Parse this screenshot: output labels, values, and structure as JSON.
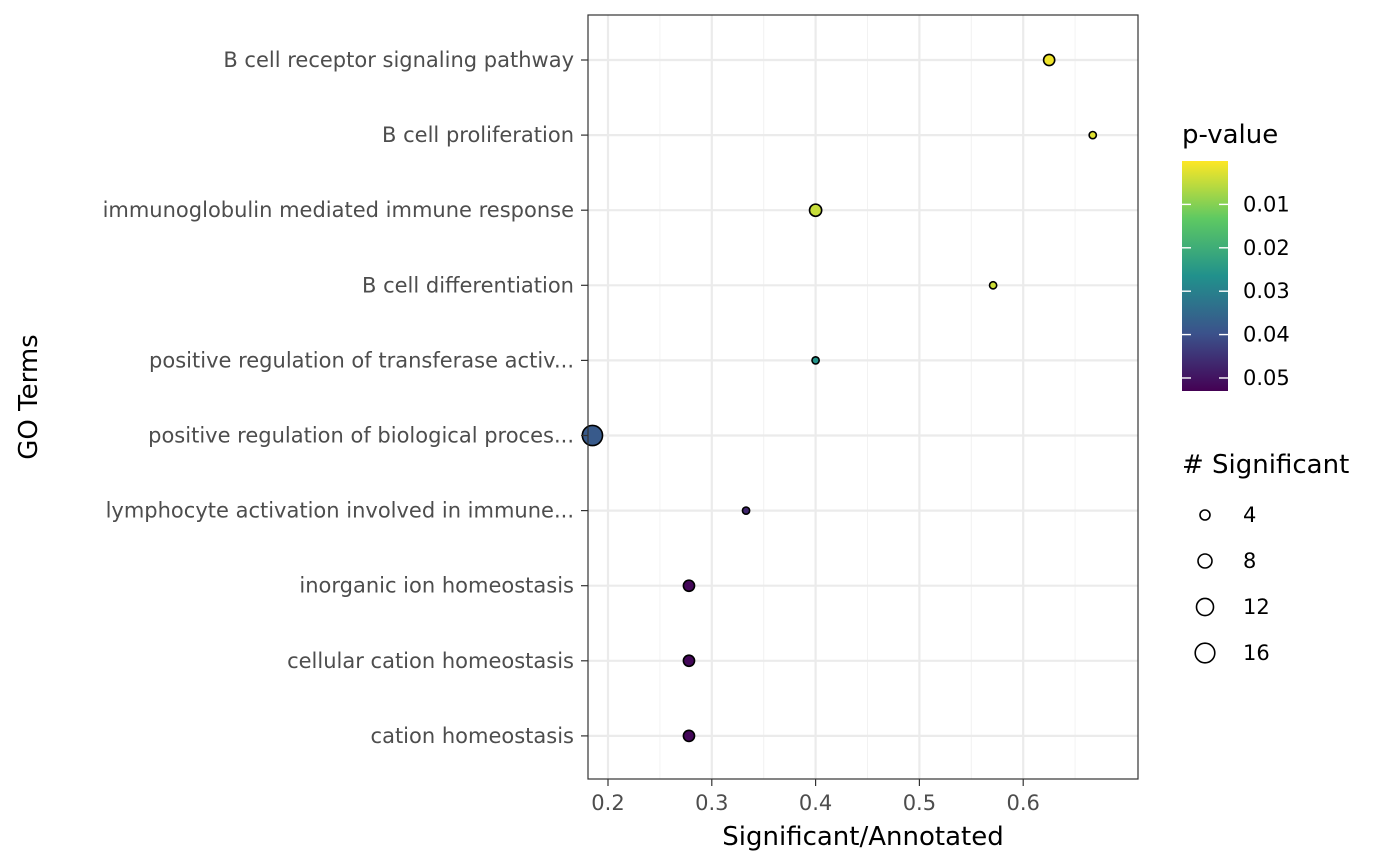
{
  "chart_data": {
    "type": "scatter",
    "xlabel": "Significant/Annotated",
    "ylabel": "GO Terms",
    "xlim": [
      0.16,
      0.69
    ],
    "x_ticks": [
      0.2,
      0.3,
      0.4,
      0.5,
      0.6
    ],
    "x_tick_labels": [
      "0.2",
      "0.3",
      "0.4",
      "0.5",
      "0.6"
    ],
    "grid": true,
    "categories": [
      "B cell receptor signaling pathway",
      "B cell proliferation",
      "immunoglobulin mediated immune response",
      "B cell differentiation",
      "positive regulation of transferase activ...",
      "positive regulation of biological proces...",
      "lymphocyte activation involved in immune...",
      "inorganic ion homeostasis",
      "cellular cation homeostasis",
      "cation homeostasis"
    ],
    "points": [
      {
        "term": "B cell receptor signaling pathway",
        "x": 0.625,
        "significant": 5,
        "pvalue": 0.0012
      },
      {
        "term": "B cell proliferation",
        "x": 0.667,
        "significant": 2,
        "pvalue": 0.0025
      },
      {
        "term": "immunoglobulin mediated immune response",
        "x": 0.4,
        "significant": 6,
        "pvalue": 0.0045
      },
      {
        "term": "B cell differentiation",
        "x": 0.571,
        "significant": 2,
        "pvalue": 0.004
      },
      {
        "term": "positive regulation of transferase activ...",
        "x": 0.4,
        "significant": 2,
        "pvalue": 0.026
      },
      {
        "term": "positive regulation of biological proces...",
        "x": 0.185,
        "significant": 17,
        "pvalue": 0.038
      },
      {
        "term": "lymphocyte activation involved in immune...",
        "x": 0.333,
        "significant": 2,
        "pvalue": 0.047
      },
      {
        "term": "inorganic ion homeostasis",
        "x": 0.278,
        "significant": 5,
        "pvalue": 0.052
      },
      {
        "term": "cellular cation homeostasis",
        "x": 0.278,
        "significant": 5,
        "pvalue": 0.052
      },
      {
        "term": "cation homeostasis",
        "x": 0.278,
        "significant": 5,
        "pvalue": 0.052
      }
    ],
    "color_legend": {
      "title": "p-value",
      "min": 0.0,
      "max": 0.053,
      "ticks": [
        0.01,
        0.02,
        0.03,
        0.04,
        0.05
      ],
      "tick_labels": [
        "0.01",
        "0.02",
        "0.03",
        "0.04",
        "0.05"
      ],
      "colors_low_to_high_value": [
        "#fde725",
        "#5ec962",
        "#21918c",
        "#3b528b",
        "#440154"
      ]
    },
    "size_legend": {
      "title": "# Significant",
      "values": [
        4,
        8,
        12,
        16
      ],
      "labels": [
        "4",
        "8",
        "12",
        "16"
      ]
    },
    "legend_position": "right"
  }
}
